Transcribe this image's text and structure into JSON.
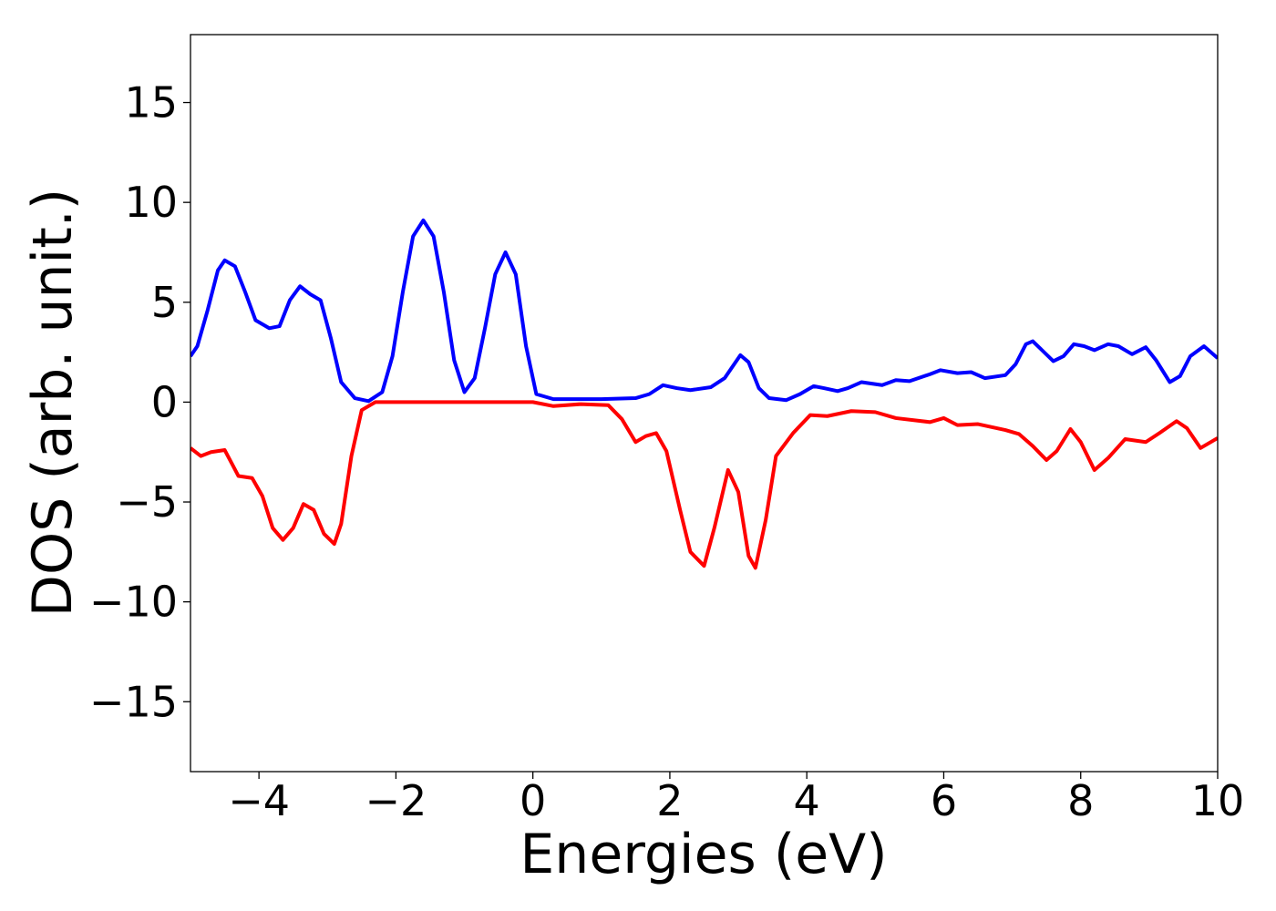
{
  "chart_data": {
    "type": "line",
    "xlabel": "Energies (eV)",
    "ylabel": "DOS (arb. unit.)",
    "xlim": [
      -5,
      10
    ],
    "ylim": [
      -18.5,
      18.4
    ],
    "xticks": [
      {
        "value": -4,
        "label": "−4"
      },
      {
        "value": -2,
        "label": "−2"
      },
      0,
      2,
      4,
      6,
      8,
      10
    ],
    "yticks": [
      {
        "value": -15,
        "label": "−15"
      },
      {
        "value": -10,
        "label": "−10"
      },
      {
        "value": -5,
        "label": "−5"
      },
      0,
      5,
      10,
      15
    ],
    "series": [
      {
        "color": "#0000ff",
        "x": [
          -5,
          -4.9,
          -4.75,
          -4.6,
          -4.5,
          -4.35,
          -4.2,
          -4.05,
          -3.85,
          -3.7,
          -3.55,
          -3.4,
          -3.25,
          -3.1,
          -2.95,
          -2.8,
          -2.6,
          -2.4,
          -2.2,
          -2.05,
          -1.9,
          -1.75,
          -1.6,
          -1.45,
          -1.3,
          -1.15,
          -1.0,
          -0.85,
          -0.7,
          -0.55,
          -0.4,
          -0.25,
          -0.1,
          0.05,
          0.3,
          1.0,
          1.5,
          1.7,
          1.9,
          2.1,
          2.3,
          2.6,
          2.8,
          2.9,
          3.03,
          3.15,
          3.3,
          3.45,
          3.7,
          3.9,
          4.1,
          4.25,
          4.45,
          4.6,
          4.8,
          5.1,
          5.3,
          5.5,
          5.8,
          5.95,
          6.2,
          6.4,
          6.6,
          6.9,
          7.05,
          7.2,
          7.3,
          7.45,
          7.6,
          7.75,
          7.9,
          8.05,
          8.2,
          8.4,
          8.55,
          8.75,
          8.95,
          9.1,
          9.3,
          9.45,
          9.6,
          9.8,
          10
        ],
        "values": [
          2.3,
          2.8,
          4.6,
          6.6,
          7.1,
          6.8,
          5.5,
          4.1,
          3.7,
          3.8,
          5.1,
          5.8,
          5.4,
          5.1,
          3.2,
          1.0,
          0.2,
          0.05,
          0.5,
          2.3,
          5.5,
          8.3,
          9.1,
          8.3,
          5.5,
          2.1,
          0.5,
          1.2,
          3.7,
          6.4,
          7.5,
          6.4,
          2.8,
          0.4,
          0.15,
          0.15,
          0.2,
          0.4,
          0.85,
          0.7,
          0.6,
          0.75,
          1.2,
          1.7,
          2.35,
          2.0,
          0.7,
          0.2,
          0.1,
          0.4,
          0.8,
          0.7,
          0.55,
          0.7,
          1.0,
          0.85,
          1.1,
          1.05,
          1.4,
          1.6,
          1.45,
          1.5,
          1.2,
          1.35,
          1.9,
          2.9,
          3.05,
          2.55,
          2.05,
          2.3,
          2.9,
          2.8,
          2.6,
          2.9,
          2.8,
          2.4,
          2.75,
          2.1,
          1.0,
          1.3,
          2.3,
          2.8,
          2.2
        ]
      },
      {
        "color": "#ff0000",
        "x": [
          -5,
          -4.85,
          -4.7,
          -4.5,
          -4.3,
          -4.1,
          -3.95,
          -3.8,
          -3.65,
          -3.5,
          -3.35,
          -3.2,
          -3.05,
          -2.9,
          -2.8,
          -2.65,
          -2.5,
          -2.3,
          0,
          0.3,
          0.7,
          1.1,
          1.3,
          1.5,
          1.65,
          1.8,
          1.95,
          2.15,
          2.3,
          2.5,
          2.65,
          2.85,
          3.0,
          3.15,
          3.25,
          3.4,
          3.55,
          3.8,
          4.05,
          4.3,
          4.65,
          5.0,
          5.3,
          5.8,
          6.0,
          6.2,
          6.5,
          6.9,
          7.1,
          7.3,
          7.5,
          7.65,
          7.85,
          8.0,
          8.2,
          8.4,
          8.65,
          8.95,
          9.15,
          9.4,
          9.55,
          9.75,
          10
        ],
        "values": [
          -2.3,
          -2.7,
          -2.5,
          -2.4,
          -3.7,
          -3.8,
          -4.7,
          -6.3,
          -6.9,
          -6.3,
          -5.1,
          -5.4,
          -6.6,
          -7.1,
          -6.1,
          -2.7,
          -0.4,
          0,
          0,
          -0.2,
          -0.1,
          -0.15,
          -0.85,
          -2.0,
          -1.7,
          -1.55,
          -2.45,
          -5.4,
          -7.5,
          -8.2,
          -6.3,
          -3.4,
          -4.5,
          -7.7,
          -8.3,
          -5.9,
          -2.7,
          -1.55,
          -0.65,
          -0.7,
          -0.45,
          -0.5,
          -0.8,
          -1.0,
          -0.8,
          -1.15,
          -1.1,
          -1.4,
          -1.6,
          -2.2,
          -2.9,
          -2.45,
          -1.35,
          -2.0,
          -3.4,
          -2.8,
          -1.85,
          -2.0,
          -1.55,
          -0.95,
          -1.3,
          -2.3,
          -1.8
        ]
      }
    ]
  }
}
